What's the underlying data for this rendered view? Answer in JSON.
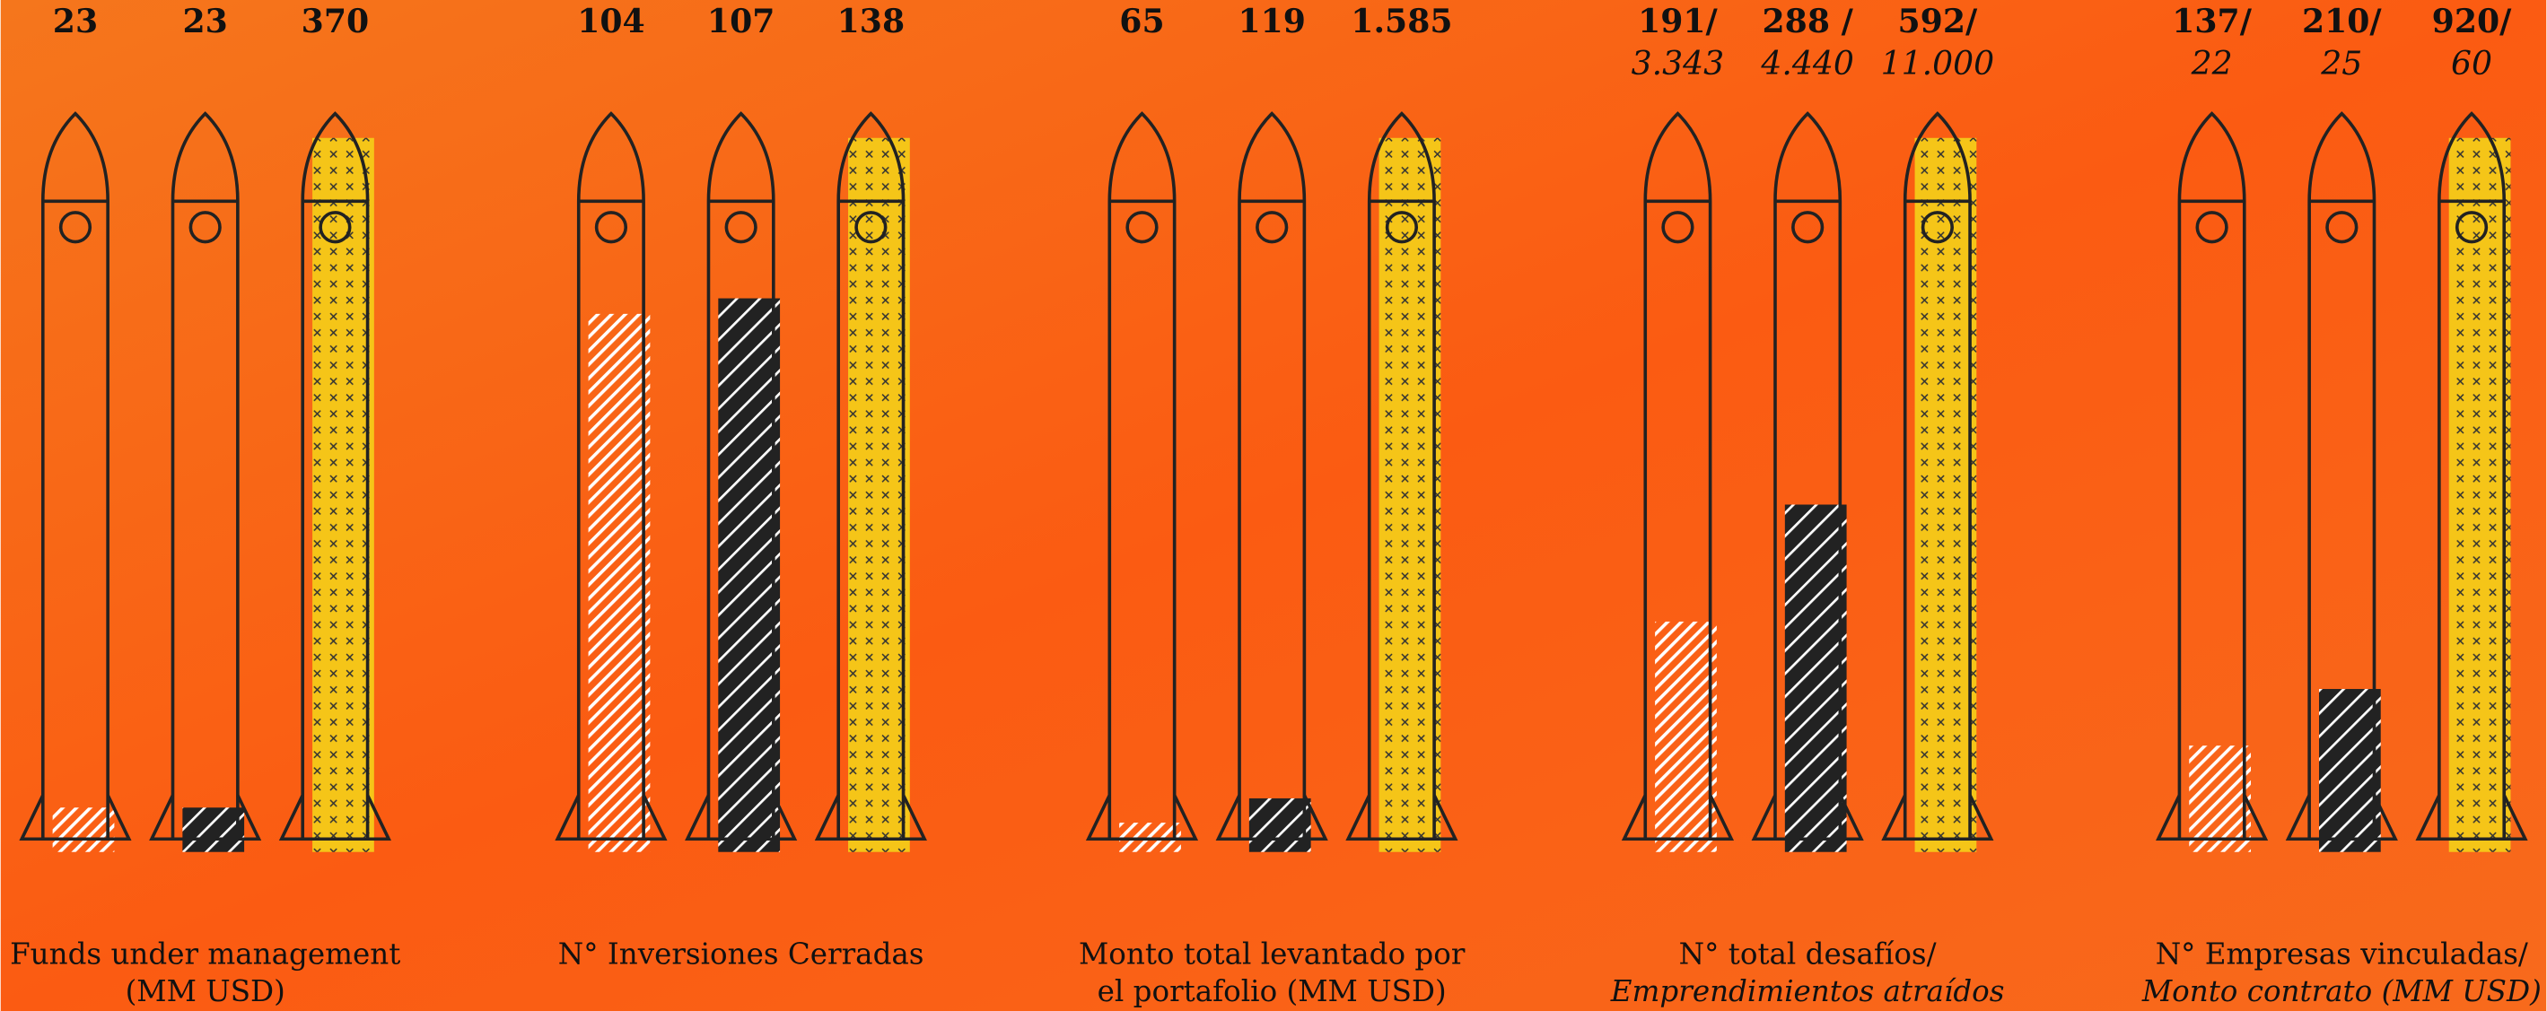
{
  "colors": [
    "#ffffff",
    "#222222",
    "#f5c518"
  ],
  "chart_data": [
    {
      "type": "bar",
      "title": "Funds under management",
      "subtitle": "(MM USD)",
      "values": [
        23,
        23,
        370
      ]
    },
    {
      "type": "bar",
      "title": "N° Inversiones Cerradas",
      "values": [
        104,
        107,
        138
      ]
    },
    {
      "type": "bar",
      "title": "Monto total levantado por",
      "subtitle": "el portafolio (MM USD)",
      "values": [
        65,
        119,
        1585
      ],
      "value_labels": [
        "65",
        "119",
        "1.585"
      ]
    },
    {
      "type": "bar",
      "title": "N° total desafíos/",
      "subtitle": "Emprendimientos atraídos",
      "subtitle_italic": true,
      "values": [
        191,
        288,
        592
      ],
      "value_labels": [
        "191/",
        "288 /",
        "592/"
      ],
      "values2": [
        3343,
        4440,
        11000
      ],
      "value2_labels": [
        "3.343",
        "4.440",
        "11.000"
      ]
    },
    {
      "type": "bar",
      "title": "N° Empresas vinculadas/",
      "subtitle": "Monto contrato (MM USD)",
      "subtitle_italic": true,
      "values": [
        137,
        210,
        920
      ],
      "value_labels": [
        "137/",
        "210/",
        "920/"
      ],
      "values2": [
        22,
        25,
        60
      ]
    }
  ]
}
